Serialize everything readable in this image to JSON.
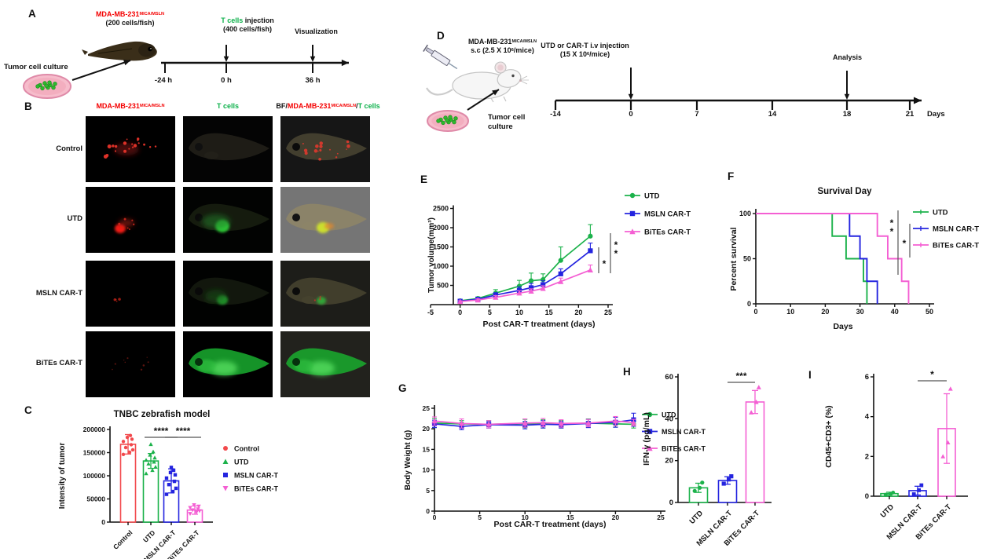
{
  "colors": {
    "red": "#F2494C",
    "green": "#1CB24B",
    "blue": "#2424DF",
    "pink": "#F45FD3",
    "label_red": "#F40000",
    "label_green": "#0DB14B",
    "axis": "#111111"
  },
  "panel_a": {
    "letter": "A",
    "cell_line": "MDA-MB-231",
    "cell_line_sup": "MICA/MSLN",
    "cell_line_dose": "(200 cells/fish)",
    "tcells": "T cells",
    "tcells_rest": " injection",
    "tcells_dose": "(400 cells/fish)",
    "visualization": "Visualization",
    "tumor_culture": "Tumor cell culture",
    "ticks": [
      "-24 h",
      "0 h",
      "36 h"
    ]
  },
  "panel_b": {
    "letter": "B",
    "col1": {
      "main": "MDA-MB-231",
      "sup": "MICA/MSLN"
    },
    "col2": {
      "label": "T cells"
    },
    "col3": {
      "bf": "BF/",
      "main": "MDA-MB-231",
      "sup": "MICA/MSLN",
      "slash": "/",
      "tcells": "T cells"
    },
    "rows": [
      {
        "label": "Control"
      },
      {
        "label": "UTD"
      },
      {
        "label": "MSLN CAR-T"
      },
      {
        "label": "BiTEs CAR-T"
      }
    ]
  },
  "panel_d": {
    "letter": "D",
    "cell_line": "MDA-MB-231",
    "cell_line_sup": "MICA/MSLN",
    "sc_pre": "s.c (2.5 X 10",
    "sc_sup": "6",
    "sc_post": "/mice)",
    "injection": "UTD or CAR-T i.v injection",
    "dose_pre": "(15 X 10",
    "dose_sup": "6",
    "dose_post": "/mice)",
    "analysis": "Analysis",
    "tumor_line1": "Tumor cell",
    "tumor_line2": "culture",
    "ticks": [
      "-14",
      "0",
      "7",
      "14",
      "18",
      "21"
    ],
    "days": "Days"
  },
  "panel_letters": {
    "c": "C",
    "e": "E",
    "f": "F",
    "g": "G",
    "h": "H",
    "i": "I"
  },
  "chart_data": [
    {
      "id": "C",
      "type": "bar",
      "title": "TNBC zebrafish model",
      "ylabel": "Intensity of tumor",
      "ylim": [
        0,
        200000
      ],
      "yticks": [
        0,
        50000,
        100000,
        150000,
        200000
      ],
      "categories": [
        "Control",
        "UTD",
        "MSLN CAR-T",
        "BiTEs CAR-T"
      ],
      "series_colors": [
        "red",
        "green",
        "blue",
        "pink"
      ],
      "markers": [
        "circle",
        "tri",
        "square",
        "tridown"
      ],
      "values": [
        168000,
        132000,
        89000,
        26000
      ],
      "errors": [
        21000,
        16000,
        26000,
        9000
      ],
      "points": [
        [
          146000,
          151000,
          156000,
          161000,
          167000,
          174000,
          179000,
          183000,
          187000
        ],
        [
          105000,
          112000,
          119000,
          126000,
          130000,
          134000,
          139000,
          145000,
          152000,
          168000
        ],
        [
          60000,
          66000,
          73000,
          81000,
          88000,
          95000,
          102000,
          107000,
          112000,
          118000
        ],
        [
          18000,
          21000,
          24000,
          26000,
          28000,
          31000,
          34000,
          37000
        ]
      ],
      "legend": [
        "Control",
        "UTD",
        "MSLN CAR-T",
        "BiTEs CAR-T"
      ],
      "sig": [
        {
          "label": "****",
          "from": 1,
          "to": 2
        },
        {
          "label": "****",
          "from": 2,
          "to": 3
        }
      ]
    },
    {
      "id": "E",
      "type": "line",
      "xlabel": "Post CAR-T treatment (days)",
      "ylabel": "Tumor volume(mm³)",
      "xlim": [
        -5,
        25
      ],
      "ylim": [
        0,
        2500
      ],
      "xticks": [
        -5,
        0,
        5,
        10,
        15,
        20,
        25
      ],
      "yticks": [
        500,
        1000,
        1500,
        2000,
        2500
      ],
      "x": [
        0,
        3,
        6,
        10,
        12,
        14,
        17,
        22
      ],
      "series": [
        {
          "name": "UTD",
          "color": "green",
          "marker": "circle",
          "values": [
            100,
            160,
            300,
            480,
            620,
            650,
            1150,
            1780
          ],
          "err": [
            30,
            40,
            90,
            150,
            200,
            150,
            350,
            300
          ]
        },
        {
          "name": "MSLN CAR-T",
          "color": "blue",
          "marker": "square",
          "values": [
            90,
            140,
            250,
            370,
            440,
            520,
            800,
            1400
          ],
          "err": [
            25,
            35,
            60,
            90,
            110,
            100,
            130,
            200
          ]
        },
        {
          "name": "BiTEs CAR-T",
          "color": "pink",
          "marker": "tri",
          "values": [
            80,
            120,
            190,
            300,
            350,
            420,
            600,
            900
          ],
          "err": [
            20,
            30,
            45,
            60,
            60,
            70,
            90,
            130
          ]
        }
      ],
      "sig": [
        "*",
        "**"
      ]
    },
    {
      "id": "F",
      "type": "survival",
      "title": "Survival Day",
      "xlabel": "Days",
      "ylabel": "Percent survival",
      "xlim": [
        0,
        50
      ],
      "xticks": [
        0,
        10,
        20,
        30,
        40,
        50
      ],
      "yticks": [
        0,
        50,
        100
      ],
      "series": [
        {
          "name": "UTD",
          "color": "green",
          "steps": [
            [
              0,
              100
            ],
            [
              22,
              100
            ],
            [
              22,
              75
            ],
            [
              26,
              75
            ],
            [
              26,
              50
            ],
            [
              31,
              50
            ],
            [
              31,
              25
            ],
            [
              32,
              25
            ],
            [
              32,
              0
            ]
          ]
        },
        {
          "name": "MSLN CAR-T",
          "color": "blue",
          "steps": [
            [
              0,
              100
            ],
            [
              27,
              100
            ],
            [
              27,
              75
            ],
            [
              30,
              75
            ],
            [
              30,
              50
            ],
            [
              32,
              50
            ],
            [
              32,
              25
            ],
            [
              35,
              25
            ],
            [
              35,
              0
            ]
          ]
        },
        {
          "name": "BiTEs CAR-T",
          "color": "pink",
          "steps": [
            [
              0,
              100
            ],
            [
              35,
              100
            ],
            [
              35,
              75
            ],
            [
              38,
              75
            ],
            [
              38,
              50
            ],
            [
              42,
              50
            ],
            [
              42,
              25
            ],
            [
              44,
              25
            ],
            [
              44,
              0
            ]
          ]
        }
      ],
      "sig": [
        "**",
        "*"
      ]
    },
    {
      "id": "G",
      "type": "line",
      "xlabel": "Post CAR-T treatment (days)",
      "ylabel": "Body Weight (g)",
      "xlim": [
        0,
        25
      ],
      "ylim": [
        0,
        25
      ],
      "xticks": [
        0,
        5,
        10,
        15,
        20,
        25
      ],
      "yticks": [
        0,
        5,
        10,
        15,
        20,
        25
      ],
      "x": [
        0,
        3,
        6,
        10,
        12,
        14,
        17,
        20,
        22
      ],
      "series": [
        {
          "name": "UTD",
          "color": "green",
          "marker": "circle",
          "values": [
            21.4,
            21.2,
            21.1,
            21.3,
            21.2,
            21.1,
            21.4,
            21.2,
            21.1
          ],
          "err": [
            1.1,
            0.8,
            0.9,
            1.0,
            1.0,
            0.9,
            1.0,
            0.8,
            0.9
          ]
        },
        {
          "name": "MSLN CAR-T",
          "color": "blue",
          "marker": "square",
          "values": [
            21.2,
            20.6,
            21.0,
            20.9,
            21.1,
            21.0,
            21.3,
            21.6,
            22.2
          ],
          "err": [
            0.9,
            0.8,
            0.8,
            0.9,
            0.9,
            0.8,
            1.0,
            1.2,
            1.6
          ]
        },
        {
          "name": "BiTEs CAR-T",
          "color": "pink",
          "marker": "tri",
          "values": [
            21.9,
            21.3,
            21.1,
            21.4,
            21.5,
            21.3,
            21.4,
            21.9,
            21.5
          ],
          "err": [
            1.0,
            1.1,
            0.9,
            1.0,
            1.0,
            0.9,
            0.9,
            1.1,
            0.8
          ]
        }
      ]
    },
    {
      "id": "H",
      "type": "bar",
      "ylabel": "IFN-γ (pg/mL)",
      "ylim": [
        0,
        60
      ],
      "yticks": [
        0,
        20,
        40,
        60
      ],
      "categories": [
        "UTD",
        "MSLN CAR-T",
        "BiTEs CAR-T"
      ],
      "series_colors": [
        "green",
        "blue",
        "pink"
      ],
      "markers": [
        "circle",
        "square",
        "tri"
      ],
      "values": [
        7,
        10.5,
        48
      ],
      "errors": [
        2.2,
        1.8,
        5.5
      ],
      "points": [
        [
          5.5,
          7,
          9.5
        ],
        [
          9,
          11,
          12.5
        ],
        [
          43,
          48,
          55
        ]
      ],
      "sig": [
        {
          "label": "***",
          "from": 1,
          "to": 2
        }
      ]
    },
    {
      "id": "I",
      "type": "bar",
      "ylabel": "CD45+CD3+ (%)",
      "ylim": [
        0,
        6
      ],
      "yticks": [
        0,
        2,
        4,
        6
      ],
      "categories": [
        "UTD",
        "MSLN CAR-T",
        "BiTEs CAR-T"
      ],
      "series_colors": [
        "green",
        "blue",
        "pink"
      ],
      "markers": [
        "circle",
        "square",
        "tri"
      ],
      "values": [
        0.13,
        0.28,
        3.4
      ],
      "errors": [
        0.07,
        0.22,
        1.75
      ],
      "points": [
        [
          0.08,
          0.12,
          0.18
        ],
        [
          0.1,
          0.3,
          0.55
        ],
        [
          2.0,
          2.7,
          5.4
        ]
      ],
      "sig": [
        {
          "label": "*",
          "from": 1,
          "to": 2
        }
      ]
    }
  ]
}
